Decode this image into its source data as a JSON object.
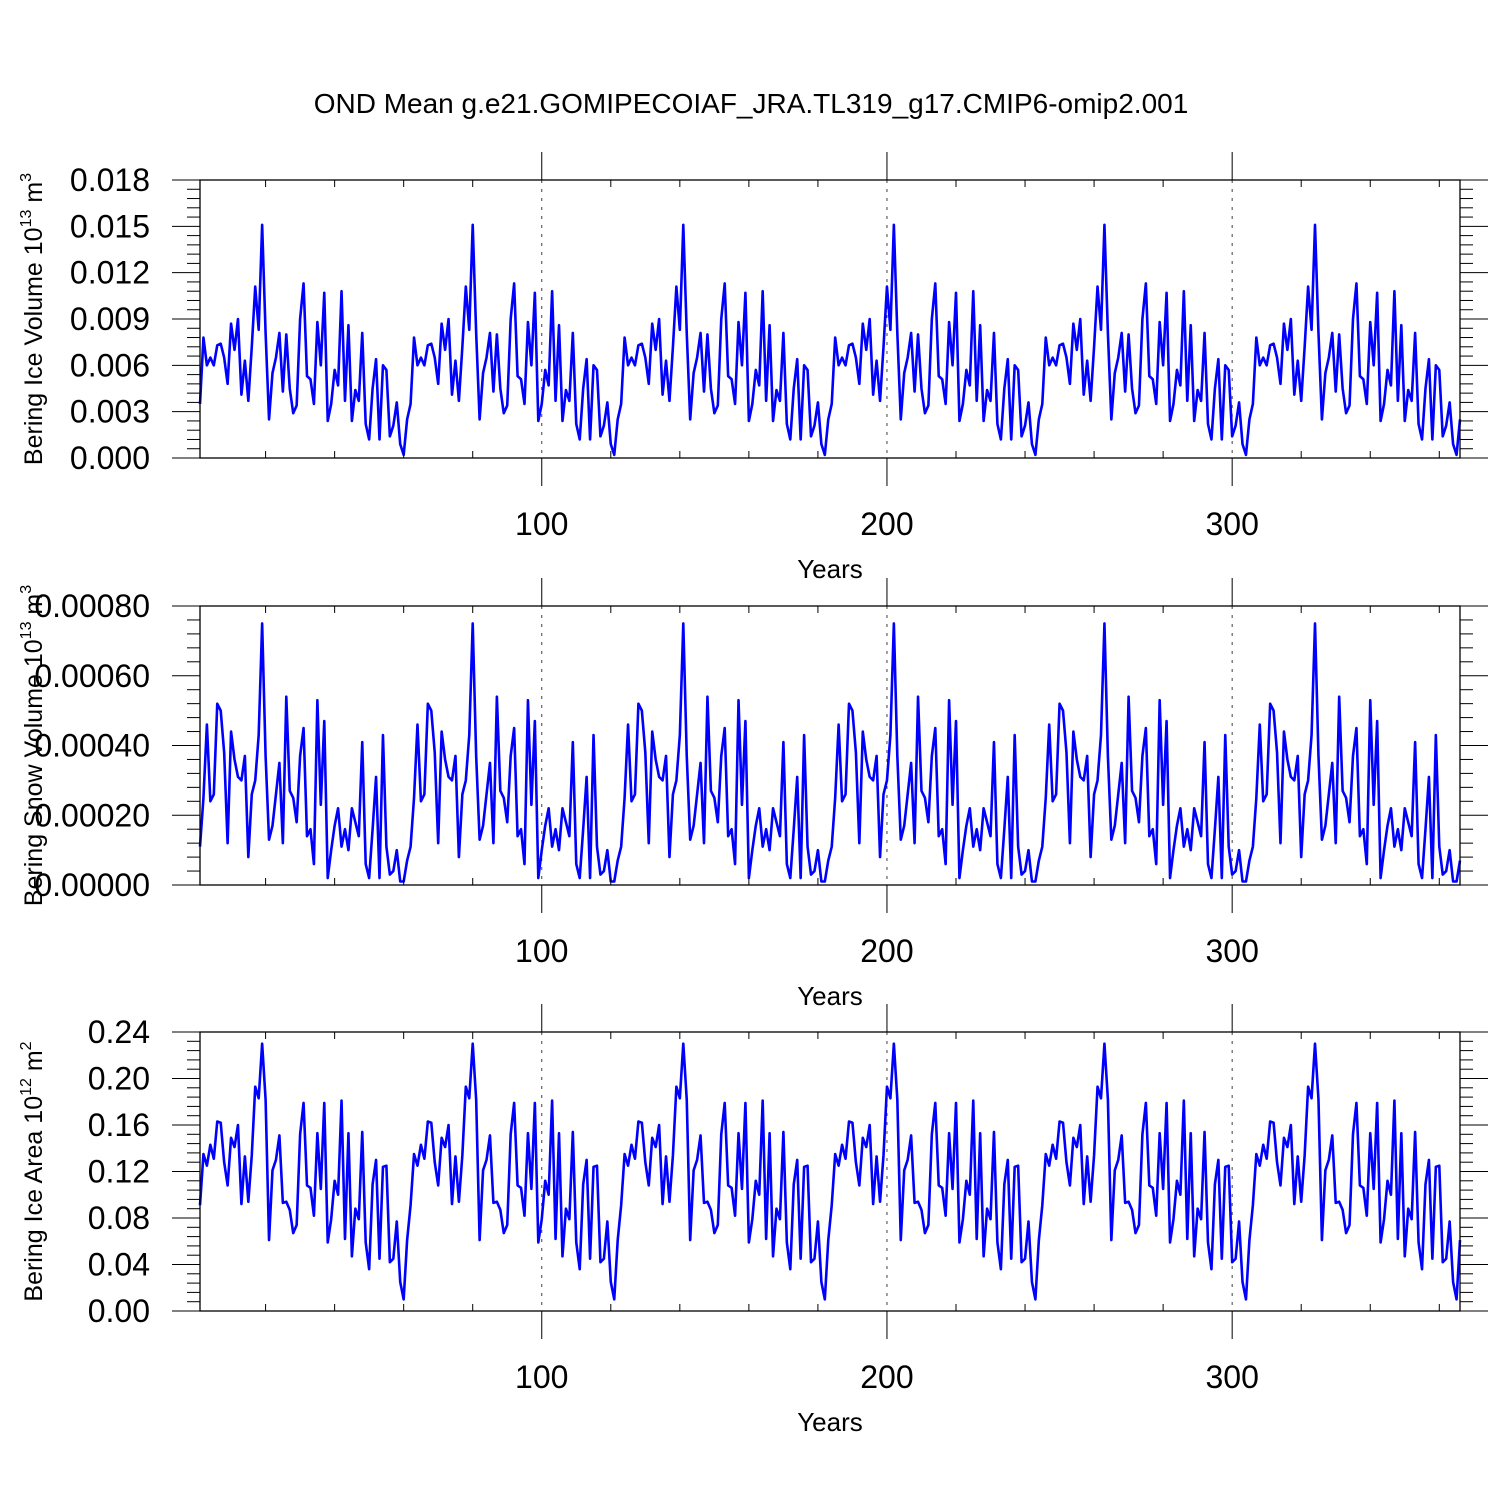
{
  "title": "OND Mean g.e21.GOMIPECOIAF_JRA.TL319_g17.CMIP6-omip2.001",
  "colors": {
    "series": "#0000ff",
    "axes": "#000000",
    "background": "#ffffff"
  },
  "chart_data": [
    {
      "type": "line",
      "ylabel_main": "Bering Ice Volume 10",
      "ylabel_sup": "13",
      "ylabel_tail": " m",
      "ylabel_sup2": "3",
      "xlabel": "Years",
      "xlim": [
        1,
        366
      ],
      "ylim": [
        0,
        0.018
      ],
      "xticks": [
        100,
        200,
        300
      ],
      "xtick_labels": [
        "100",
        "200",
        "300"
      ],
      "yticks": [
        0,
        0.003,
        0.006,
        0.009,
        0.012,
        0.015,
        0.018
      ],
      "ytick_labels": [
        "0.000",
        "0.003",
        "0.006",
        "0.009",
        "0.012",
        "0.015",
        "0.018"
      ],
      "vlines": [
        100,
        200,
        300
      ],
      "period": 61,
      "cycle": [
        0.0035,
        0.0078,
        0.006,
        0.0065,
        0.006,
        0.0073,
        0.0074,
        0.0065,
        0.0048,
        0.0087,
        0.007,
        0.009,
        0.0041,
        0.0063,
        0.0037,
        0.0072,
        0.0111,
        0.0083,
        0.0151,
        0.0081,
        0.0025,
        0.0055,
        0.0065,
        0.0081,
        0.0043,
        0.008,
        0.0045,
        0.0029,
        0.0034,
        0.009,
        0.0113,
        0.0053,
        0.0051,
        0.0035,
        0.0088,
        0.006,
        0.0107,
        0.0024,
        0.0035,
        0.0057,
        0.0047,
        0.0108,
        0.0037,
        0.0086,
        0.0024,
        0.0044,
        0.0037,
        0.0081,
        0.0022,
        0.0012,
        0.0045,
        0.0064,
        0.0012,
        0.006,
        0.0057,
        0.0014,
        0.0021,
        0.0036,
        0.0009,
        0.0002,
        0.0025
      ]
    },
    {
      "type": "line",
      "ylabel_main": "Bering Snow Volume 10",
      "ylabel_sup": "13",
      "ylabel_tail": " m",
      "ylabel_sup2": "3",
      "xlabel": "Years",
      "xlim": [
        1,
        366
      ],
      "ylim": [
        0,
        0.0008
      ],
      "xticks": [
        100,
        200,
        300
      ],
      "xtick_labels": [
        "100",
        "200",
        "300"
      ],
      "yticks": [
        0,
        0.0002,
        0.0004,
        0.0006,
        0.0008
      ],
      "ytick_labels": [
        "0.00000",
        "0.00020",
        "0.00040",
        "0.00060",
        "0.00080"
      ],
      "vlines": [
        100,
        200,
        300
      ],
      "period": 61,
      "cycle": [
        0.00011,
        0.00025,
        0.00046,
        0.00024,
        0.00026,
        0.00052,
        0.0005,
        0.00038,
        0.00012,
        0.00044,
        0.00036,
        0.00031,
        0.0003,
        0.00037,
        8e-05,
        0.00026,
        0.0003,
        0.00043,
        0.00075,
        0.00037,
        0.00013,
        0.00017,
        0.00026,
        0.00035,
        0.00012,
        0.00054,
        0.00027,
        0.00025,
        0.00018,
        0.00037,
        0.00045,
        0.00014,
        0.00016,
        6e-05,
        0.00053,
        0.00023,
        0.00047,
        2e-05,
        0.0001,
        0.00017,
        0.00022,
        0.00011,
        0.00016,
        0.0001,
        0.00022,
        0.00018,
        0.00014,
        0.00041,
        6e-05,
        2e-05,
        0.00016,
        0.00031,
        2e-05,
        0.00043,
        0.00011,
        3e-05,
        4e-05,
        0.0001,
        1e-05,
        1e-05,
        7e-05
      ]
    },
    {
      "type": "line",
      "ylabel_main": "Bering Ice Area 10",
      "ylabel_sup": "12",
      "ylabel_tail": " m",
      "ylabel_sup2": "2",
      "xlabel": "Years",
      "xlim": [
        1,
        366
      ],
      "ylim": [
        0,
        0.24
      ],
      "xticks": [
        100,
        200,
        300
      ],
      "xtick_labels": [
        "100",
        "200",
        "300"
      ],
      "yticks": [
        0,
        0.04,
        0.08,
        0.12,
        0.16,
        0.2,
        0.24
      ],
      "ytick_labels": [
        "0.00",
        "0.04",
        "0.08",
        "0.12",
        "0.16",
        "0.20",
        "0.24"
      ],
      "vlines": [
        100,
        200,
        300
      ],
      "period": 61,
      "cycle": [
        0.091,
        0.135,
        0.125,
        0.143,
        0.131,
        0.163,
        0.162,
        0.128,
        0.108,
        0.149,
        0.141,
        0.16,
        0.092,
        0.133,
        0.094,
        0.134,
        0.193,
        0.183,
        0.23,
        0.182,
        0.061,
        0.121,
        0.13,
        0.151,
        0.093,
        0.094,
        0.087,
        0.067,
        0.074,
        0.152,
        0.179,
        0.108,
        0.106,
        0.082,
        0.153,
        0.105,
        0.179,
        0.059,
        0.079,
        0.112,
        0.1,
        0.181,
        0.062,
        0.153,
        0.047,
        0.088,
        0.079,
        0.154,
        0.059,
        0.036,
        0.109,
        0.13,
        0.045,
        0.124,
        0.125,
        0.042,
        0.045,
        0.077,
        0.025,
        0.01,
        0.061
      ]
    }
  ]
}
